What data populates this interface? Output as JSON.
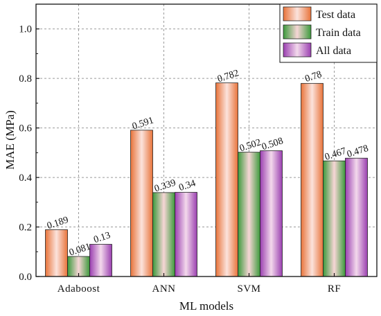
{
  "chart_data": {
    "type": "bar",
    "title": "",
    "xlabel": "ML models",
    "ylabel": "MAE (MPa)",
    "categories": [
      "Adaboost",
      "ANN",
      "SVM",
      "RF"
    ],
    "series": [
      {
        "name": "Test data",
        "values": [
          0.189,
          0.591,
          0.782,
          0.78
        ],
        "labels": [
          "0.189",
          "0.591",
          "0.782",
          "0.78"
        ],
        "color_edge": "#e8733a",
        "color_center": "#fbe3dc"
      },
      {
        "name": "Train data",
        "values": [
          0.081,
          0.339,
          0.502,
          0.467
        ],
        "labels": [
          "0.081",
          "0.339",
          "0.502",
          "0.467"
        ],
        "color_edge": "#3c9a3c",
        "color_center": "#f7d6d6"
      },
      {
        "name": "All data",
        "values": [
          0.13,
          0.34,
          0.508,
          0.478
        ],
        "labels": [
          "0.13",
          "0.34",
          "0.508",
          "0.478"
        ],
        "color_edge": "#9a3fb0",
        "color_center": "#f3d9ec"
      }
    ],
    "ylim": [
      0,
      1.1
    ],
    "yticks": [
      "0.0",
      "0.2",
      "0.4",
      "0.6",
      "0.8",
      "1.0"
    ],
    "grid": true,
    "grid_style": "dashed",
    "legend_position": "top-right"
  }
}
